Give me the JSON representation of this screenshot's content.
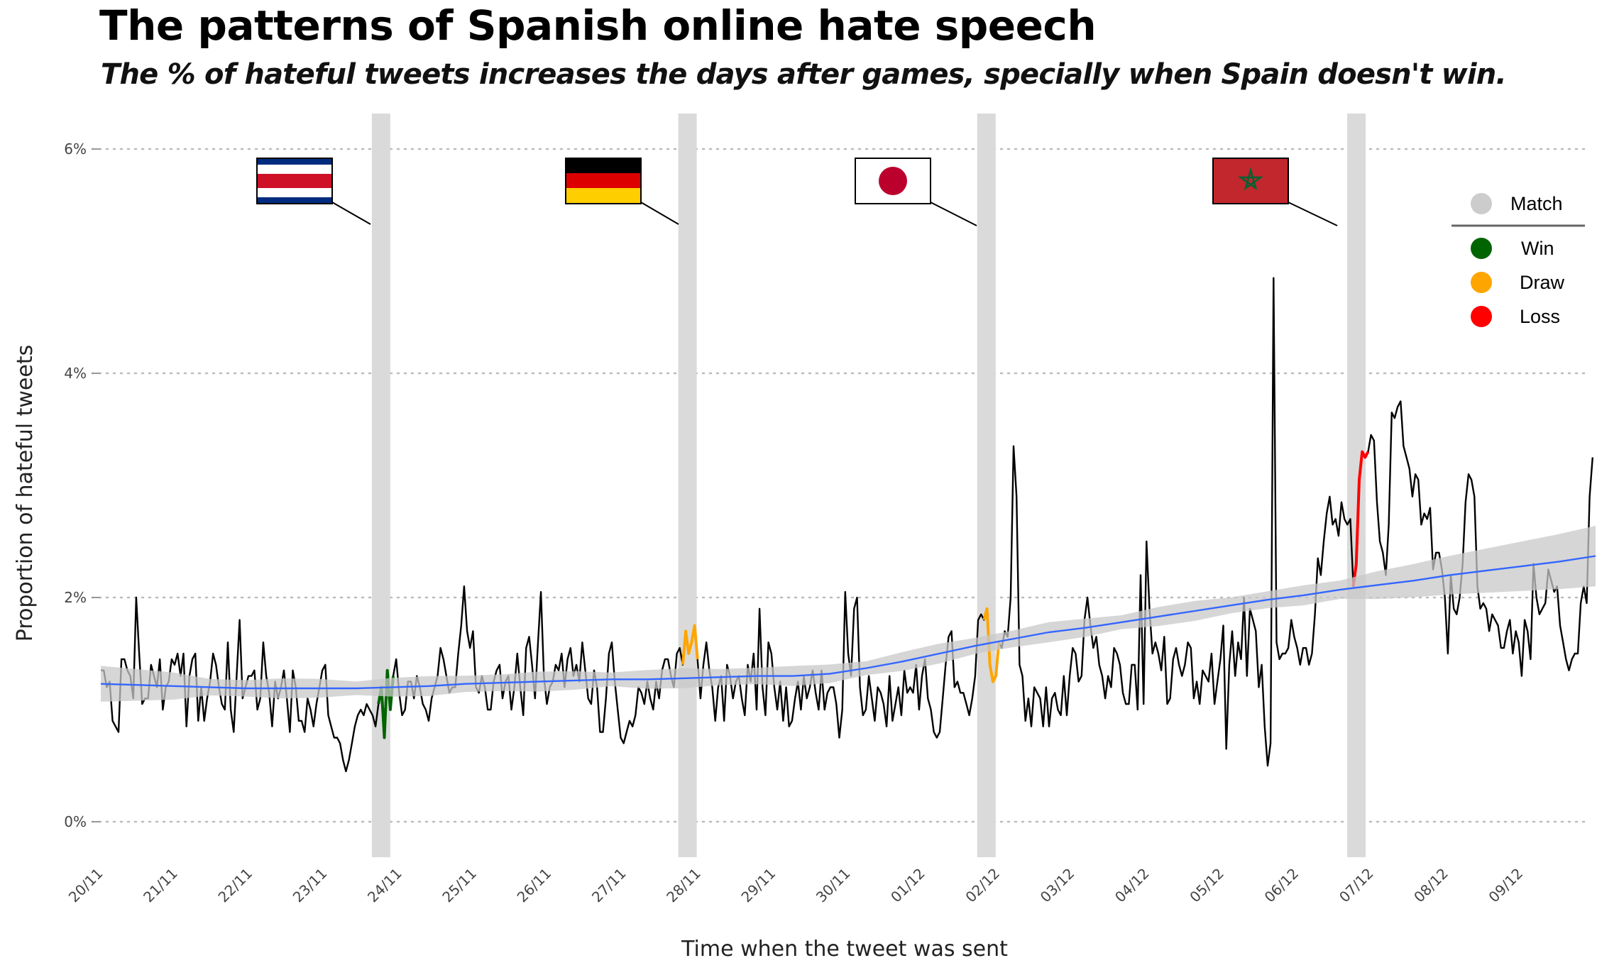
{
  "title": "The patterns of Spanish online hate speech",
  "subtitle": "The % of hateful tweets increases the days after games, specially when Spain doesn't win.",
  "chart_data": {
    "type": "line",
    "xlabel": "Time when the tweet was sent",
    "ylabel": "Proportion of hateful tweets",
    "x_ticks": [
      "20/11",
      "21/11",
      "22/11",
      "23/11",
      "24/11",
      "25/11",
      "26/11",
      "27/11",
      "28/11",
      "29/11",
      "30/11",
      "01/12",
      "02/12",
      "03/12",
      "04/12",
      "05/12",
      "06/12",
      "07/12",
      "08/12",
      "09/12"
    ],
    "y_ticks": [
      "0%",
      "2%",
      "4%",
      "6%"
    ],
    "ylim": [
      0,
      6
    ],
    "xlim_days": [
      0,
      20
    ],
    "grid": "horizontal dotted",
    "legend": {
      "placement": "right",
      "title": "Match",
      "items": [
        {
          "label": "Win",
          "color": "#006400"
        },
        {
          "label": "Draw",
          "color": "#FFA500"
        },
        {
          "label": "Loss",
          "color": "#FF0000"
        }
      ]
    },
    "matches": [
      {
        "team": "Costa Rica",
        "day": 23.75,
        "result": "Win"
      },
      {
        "team": "Germany",
        "day": 27.85,
        "result": "Draw"
      },
      {
        "team": "Japan",
        "day": 1.85,
        "result": "Draw"
      },
      {
        "team": "Morocco",
        "day": 6.8,
        "result": "Loss"
      }
    ],
    "series": [
      {
        "values": [
          1.35,
          1.35,
          1.2,
          1.25,
          0.9,
          0.85,
          0.8,
          1.45,
          1.45,
          1.35,
          1.3,
          1.1,
          2.0,
          1.5,
          1.05,
          1.1,
          1.1,
          1.4,
          1.3,
          1.2,
          1.45,
          1.0,
          1.2,
          1.25,
          1.45,
          1.4,
          1.5,
          1.3,
          1.5,
          0.85,
          1.3,
          1.45,
          1.5,
          0.9,
          1.2,
          0.9,
          1.1,
          1.25,
          1.5,
          1.4,
          1.2,
          1.05,
          1.0,
          1.6,
          1.0,
          0.8,
          1.3,
          1.8,
          1.1,
          1.2,
          1.3,
          1.3,
          1.35,
          1.0,
          1.1,
          1.6,
          1.3,
          1.15,
          0.85,
          1.25,
          1.1,
          1.2,
          1.35,
          1.1,
          0.8,
          1.35,
          1.2,
          0.9,
          0.9,
          0.8,
          1.1,
          1.0,
          0.85,
          1.05,
          1.2,
          1.35,
          1.4,
          0.95,
          0.85,
          0.75,
          0.75,
          0.7,
          0.55,
          0.45,
          0.55,
          0.7,
          0.85,
          0.95,
          1.0,
          0.95,
          1.05,
          1.0,
          0.95,
          0.85,
          1.05,
          1.2,
          0.75,
          1.35,
          1.0,
          1.3,
          1.45,
          1.15,
          0.95,
          1.0,
          1.25,
          1.25,
          1.1,
          1.3,
          1.2,
          1.05,
          1.0,
          0.9,
          1.1,
          1.2,
          1.3,
          1.55,
          1.45,
          1.3,
          1.15,
          1.2,
          1.2,
          1.5,
          1.75,
          2.1,
          1.7,
          1.55,
          1.7,
          1.2,
          1.15,
          1.3,
          1.2,
          1.0,
          1.0,
          1.25,
          1.35,
          1.4,
          1.1,
          1.25,
          1.3,
          1.0,
          1.2,
          1.5,
          1.2,
          0.95,
          1.55,
          1.65,
          1.4,
          1.1,
          1.6,
          2.05,
          1.3,
          1.05,
          1.2,
          1.25,
          1.4,
          1.35,
          1.5,
          1.2,
          1.45,
          1.55,
          1.3,
          1.4,
          1.25,
          1.6,
          1.35,
          1.1,
          1.05,
          1.35,
          1.2,
          0.8,
          0.8,
          1.1,
          1.5,
          1.6,
          1.25,
          1.0,
          0.75,
          0.7,
          0.8,
          0.9,
          0.85,
          0.95,
          1.2,
          1.15,
          1.05,
          1.25,
          1.1,
          1.0,
          1.25,
          1.1,
          1.35,
          1.45,
          1.45,
          1.3,
          1.2,
          1.5,
          1.55,
          1.4,
          1.7,
          1.5,
          1.6,
          1.75,
          1.45,
          1.1,
          1.4,
          1.6,
          1.35,
          1.2,
          0.9,
          1.2,
          1.3,
          0.9,
          1.4,
          1.3,
          1.1,
          1.25,
          1.3,
          1.1,
          0.95,
          1.4,
          1.25,
          1.5,
          1.0,
          1.9,
          1.2,
          0.95,
          1.6,
          1.5,
          1.2,
          1.0,
          1.25,
          0.9,
          1.2,
          0.85,
          0.9,
          1.1,
          1.25,
          1.0,
          1.3,
          1.1,
          1.2,
          1.35,
          1.15,
          1.0,
          1.35,
          1.0,
          1.15,
          1.2,
          1.2,
          1.05,
          0.75,
          1.0,
          2.05,
          1.5,
          1.3,
          1.9,
          2.0,
          1.2,
          0.95,
          1.0,
          1.3,
          1.1,
          0.9,
          1.2,
          1.15,
          1.05,
          0.85,
          1.3,
          0.9,
          1.05,
          1.2,
          0.95,
          1.35,
          1.15,
          1.2,
          1.15,
          1.4,
          1.0,
          1.3,
          1.45,
          1.1,
          1.0,
          0.8,
          0.75,
          0.8,
          1.1,
          1.4,
          1.65,
          1.7,
          1.2,
          1.25,
          1.15,
          1.15,
          1.05,
          0.95,
          1.1,
          1.3,
          1.8,
          1.85,
          1.8,
          1.9,
          1.4,
          1.25,
          1.3,
          1.6,
          1.55,
          1.7,
          1.65,
          2.0,
          3.35,
          2.9,
          1.4,
          1.3,
          0.9,
          1.1,
          0.85,
          1.2,
          1.15,
          1.1,
          0.85,
          1.2,
          0.85,
          1.1,
          1.15,
          1.0,
          0.95,
          1.3,
          0.95,
          1.3,
          1.55,
          1.5,
          1.25,
          1.3,
          1.8,
          2.0,
          1.75,
          1.55,
          1.65,
          1.4,
          1.3,
          1.1,
          1.3,
          1.2,
          1.55,
          1.5,
          1.4,
          1.15,
          1.05,
          1.05,
          1.4,
          1.4,
          1.0,
          2.2,
          1.05,
          2.5,
          1.9,
          1.5,
          1.6,
          1.5,
          1.35,
          1.65,
          1.05,
          1.1,
          1.45,
          1.55,
          1.4,
          1.3,
          1.4,
          1.6,
          1.55,
          1.1,
          1.25,
          1.05,
          1.35,
          1.3,
          1.25,
          1.5,
          1.05,
          1.25,
          1.45,
          1.75,
          0.65,
          1.4,
          1.7,
          1.3,
          1.6,
          1.45,
          2.0,
          1.3,
          1.9,
          1.8,
          1.7,
          1.2,
          1.4,
          0.85,
          0.5,
          0.7,
          4.85,
          1.6,
          1.45,
          1.5,
          1.5,
          1.55,
          1.8,
          1.65,
          1.55,
          1.4,
          1.55,
          1.55,
          1.4,
          1.5,
          1.85,
          2.35,
          2.2,
          2.5,
          2.75,
          2.9,
          2.65,
          2.7,
          2.55,
          2.85,
          2.7,
          2.65,
          2.7,
          2.1,
          2.3,
          3.05,
          3.3,
          3.25,
          3.3,
          3.45,
          3.4,
          2.85,
          2.5,
          2.4,
          2.2,
          2.65,
          3.65,
          3.6,
          3.7,
          3.75,
          3.35,
          3.25,
          3.15,
          2.9,
          3.1,
          3.05,
          2.65,
          2.75,
          2.7,
          2.8,
          2.25,
          2.4,
          2.4,
          2.25,
          2.0,
          1.5,
          2.2,
          1.9,
          1.85,
          2.0,
          2.3,
          2.85,
          3.1,
          3.05,
          2.9,
          2.1,
          1.9,
          1.95,
          1.9,
          1.7,
          1.85,
          1.8,
          1.75,
          1.55,
          1.55,
          1.7,
          1.8,
          1.5,
          1.7,
          1.6,
          1.3,
          1.8,
          1.7,
          1.45,
          2.3,
          2.0,
          1.85,
          1.9,
          1.95,
          2.25,
          2.15,
          2.05,
          2.1,
          1.75,
          1.6,
          1.45,
          1.35,
          1.45,
          1.5,
          1.5,
          1.95,
          2.1,
          1.95,
          2.9,
          3.25
        ]
      },
      {
        "values": [
          1.23,
          1.22,
          1.21,
          1.2,
          1.19,
          1.19,
          1.19,
          1.19,
          1.2,
          1.21,
          1.23,
          1.24,
          1.25,
          1.26,
          1.27,
          1.27,
          1.28,
          1.29,
          1.3,
          1.3,
          1.32,
          1.37,
          1.43,
          1.5,
          1.57,
          1.63,
          1.69,
          1.73,
          1.78,
          1.83,
          1.88,
          1.93,
          1.98,
          2.02,
          2.07,
          2.11,
          2.15,
          2.2,
          2.24,
          2.28,
          2.32,
          2.37
        ]
      }
    ]
  }
}
